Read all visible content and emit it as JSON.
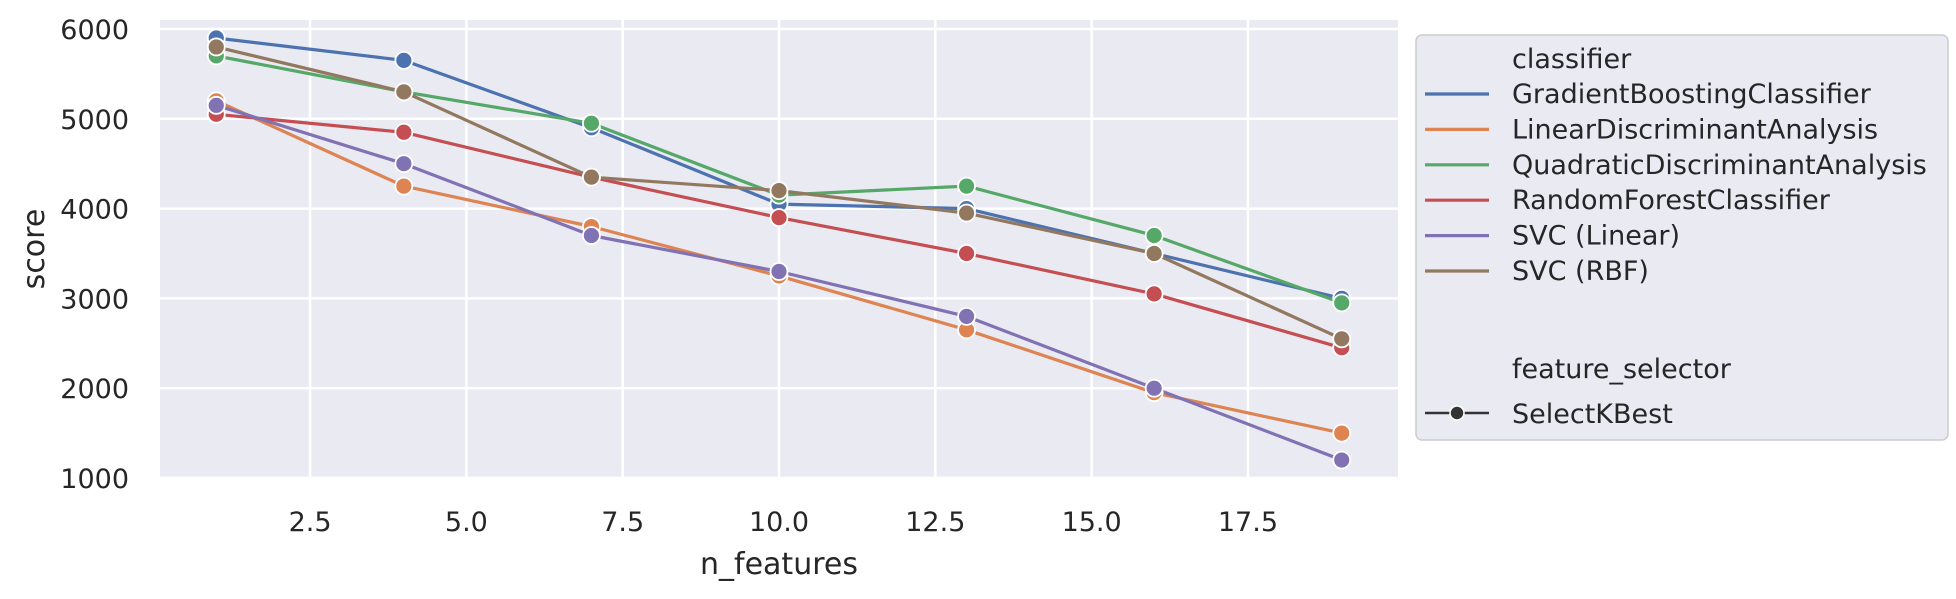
{
  "chart_data": {
    "type": "line",
    "xlabel": "n_features",
    "ylabel": "score",
    "xlim": [
      0.1,
      19.9
    ],
    "ylim": [
      1000,
      6100
    ],
    "xticks": [
      2.5,
      5.0,
      7.5,
      10.0,
      12.5,
      15.0,
      17.5
    ],
    "xtick_labels": [
      "2.5",
      "5.0",
      "7.5",
      "10.0",
      "12.5",
      "15.0",
      "17.5"
    ],
    "yticks": [
      1000,
      2000,
      3000,
      4000,
      5000,
      6000
    ],
    "ytick_labels": [
      "1000",
      "2000",
      "3000",
      "4000",
      "5000",
      "6000"
    ],
    "grid": true,
    "legend_placement": "outside-right",
    "x": [
      1,
      4,
      7,
      10,
      13,
      16,
      19
    ],
    "series": [
      {
        "name": "GradientBoostingClassifier",
        "color": "#4c72b0",
        "values": [
          5900,
          5650,
          4900,
          4050,
          4000,
          3500,
          3000
        ]
      },
      {
        "name": "LinearDiscriminantAnalysis",
        "color": "#dd8452",
        "values": [
          5200,
          4250,
          3800,
          3250,
          2650,
          1950,
          1500
        ]
      },
      {
        "name": "QuadraticDiscriminantAnalysis",
        "color": "#55a868",
        "values": [
          5700,
          5300,
          4950,
          4150,
          4250,
          3700,
          2950
        ]
      },
      {
        "name": "RandomForestClassifier",
        "color": "#c44e52",
        "values": [
          5050,
          4850,
          4350,
          3900,
          3500,
          3050,
          2450
        ]
      },
      {
        "name": "SVC (Linear)",
        "color": "#8172b3",
        "values": [
          5150,
          4500,
          3700,
          3300,
          2800,
          2000,
          1200
        ]
      },
      {
        "name": "SVC (RBF)",
        "color": "#937860",
        "values": [
          5800,
          5300,
          4350,
          4200,
          3950,
          3500,
          2550
        ]
      }
    ],
    "legend": {
      "hue_title": "classifier",
      "style_title": "feature_selector",
      "style_entries": [
        "SelectKBest"
      ]
    }
  }
}
